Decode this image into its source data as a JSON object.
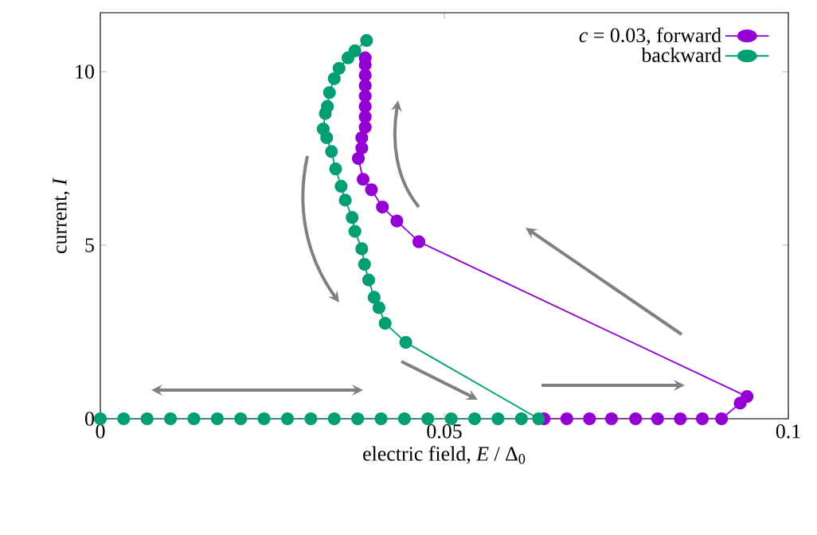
{
  "chart_data": {
    "type": "line",
    "xlabel": "electric field, *E* / Δ$_{0}$",
    "ylabel": "current, *I*",
    "xlim": [
      0,
      0.1
    ],
    "ylim": [
      0,
      11.7
    ],
    "xticks": [
      0,
      0.05,
      0.1
    ],
    "yticks": [
      0,
      5,
      10
    ],
    "legend": "top right",
    "marker": "circle",
    "grid": false,
    "series": [
      {
        "name": "*c* = 0.03, forward",
        "color": "#9400d3",
        "x": [
          0.0645,
          0.0678,
          0.0711,
          0.0743,
          0.0778,
          0.081,
          0.0843,
          0.0875,
          0.0903,
          0.093,
          0.094,
          0.0463,
          0.0431,
          0.041,
          0.0394,
          0.0382,
          0.0375,
          0.038,
          0.038,
          0.0385,
          0.0385,
          0.0385,
          0.0385,
          0.0385,
          0.0385,
          0.0385,
          0.0385
        ],
        "values": [
          0,
          0,
          0,
          0,
          0,
          0,
          0,
          0,
          0,
          0.45,
          0.64,
          5.1,
          5.7,
          6.1,
          6.6,
          6.9,
          7.5,
          7.8,
          8.1,
          8.4,
          8.7,
          9.0,
          9.3,
          9.6,
          9.9,
          10.2,
          10.4
        ]
      },
      {
        "name": "backward",
        "color": "#009e73",
        "x": [
          0.0387,
          0.037,
          0.036,
          0.0347,
          0.034,
          0.0333,
          0.033,
          0.0327,
          0.0324,
          0.0329,
          0.0336,
          0.0342,
          0.035,
          0.0356,
          0.0366,
          0.037,
          0.038,
          0.0384,
          0.039,
          0.0398,
          0.0405,
          0.0414,
          0.0444,
          0.0637,
          0.0612,
          0.0578,
          0.0544,
          0.051,
          0.0476,
          0.0442,
          0.0408,
          0.0374,
          0.034,
          0.0306,
          0.0272,
          0.0238,
          0.0204,
          0.017,
          0.0136,
          0.0102,
          0.0068,
          0.0034,
          0
        ],
        "values": [
          10.9,
          10.6,
          10.4,
          10.1,
          9.8,
          9.4,
          9.0,
          8.8,
          8.35,
          8.1,
          7.7,
          7.2,
          6.7,
          6.3,
          5.8,
          5.4,
          4.9,
          4.45,
          4.0,
          3.5,
          3.2,
          2.75,
          2.2,
          0,
          0,
          0,
          0,
          0,
          0,
          0,
          0,
          0,
          0,
          0,
          0,
          0,
          0,
          0,
          0,
          0,
          0,
          0,
          0
        ]
      }
    ]
  }
}
